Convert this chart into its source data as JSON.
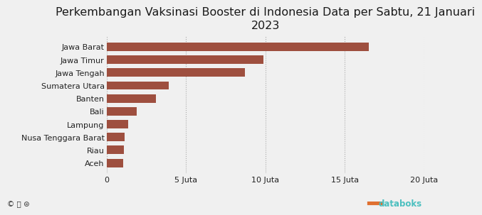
{
  "title": "Perkembangan Vaksinasi Booster di Indonesia Data per Sabtu, 21 Januari\n2023",
  "categories": [
    "Aceh",
    "Riau",
    "Nusa Tenggara Barat",
    "Lampung",
    "Bali",
    "Banten",
    "Sumatera Utara",
    "Jawa Tengah",
    "Jawa Timur",
    "Jawa Barat"
  ],
  "values": [
    1050000,
    1100000,
    1150000,
    1350000,
    1900000,
    3100000,
    3900000,
    8700000,
    9900000,
    16500000
  ],
  "bar_color": "#9e4f3f",
  "background_color": "#f0f0f0",
  "xlim": [
    0,
    20000000
  ],
  "xtick_labels": [
    "0",
    "5 Juta",
    "10 Juta",
    "15 Juta",
    "20 Juta"
  ],
  "xtick_values": [
    0,
    5000000,
    10000000,
    15000000,
    20000000
  ],
  "title_fontsize": 11.5,
  "tick_fontsize": 8,
  "databoks_color": "#4bbfbf",
  "databoks_icon_color": "#e07030"
}
